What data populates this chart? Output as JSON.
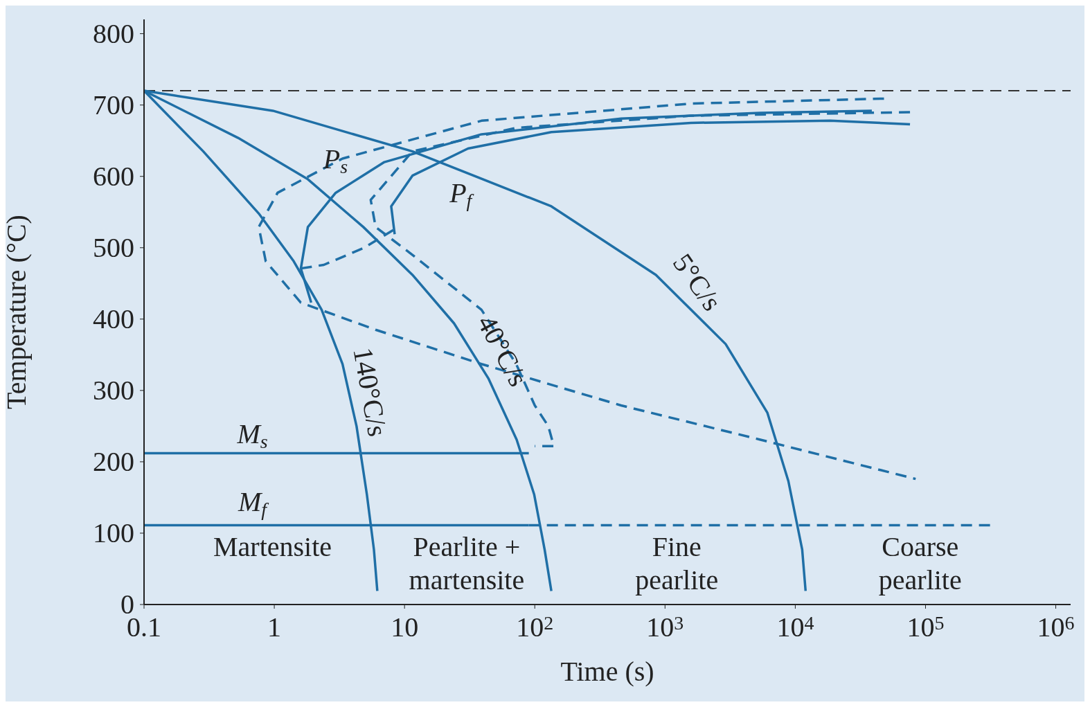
{
  "chart_data": {
    "type": "line",
    "xlabel": "Time (s)",
    "ylabel": "Temperature (°C)",
    "log": "x",
    "xlim": [
      0.1,
      1300000
    ],
    "xticks": [
      0.1,
      1,
      10,
      {
        "value": 100,
        "label": "10$^{2}$"
      },
      {
        "value": 1000,
        "label": "10$^{3}$"
      },
      {
        "value": 10000,
        "label": "10$^{4}$"
      },
      {
        "value": 100000,
        "label": "10$^{5}$"
      },
      {
        "value": 1000000,
        "label": "10$^{6}$"
      }
    ],
    "ylim": [
      0,
      820
    ],
    "yticks": [
      0,
      100,
      200,
      300,
      400,
      500,
      600,
      700,
      800
    ],
    "series": [
      {
        "color": "#1f6fa6",
        "line_style": "solid",
        "x": [
          0.1,
          0.285,
          0.76,
          1.41,
          2.31,
          3.34,
          4.28,
          5.14,
          5.82,
          6.18
        ],
        "values": [
          720,
          635,
          548,
          481,
          413,
          337,
          250,
          154,
          77,
          19
        ]
      },
      {
        "color": "#1f6fa6",
        "line_style": "solid",
        "x": [
          0.1,
          0.527,
          1.81,
          4.83,
          11.5,
          24,
          44,
          72.6,
          99,
          119,
          134
        ],
        "values": [
          720,
          654,
          596,
          529,
          462,
          394,
          317,
          231,
          154,
          77,
          19
        ]
      },
      {
        "color": "#1f6fa6",
        "line_style": "solid",
        "x": [
          0.1,
          0.975,
          11.5,
          134,
          851,
          2920,
          6100,
          8850,
          11300,
          12000
        ],
        "values": [
          720,
          692,
          635,
          558,
          462,
          365,
          269,
          173,
          77,
          19
        ]
      },
      {
        "color": "#1f6fa6",
        "line_style": "solid",
        "x": [
          1.92,
          1.6,
          1.81,
          2.96,
          7.0,
          39,
          460,
          5400,
          38700
        ],
        "values": [
          423,
          471,
          529,
          577,
          620,
          659,
          681,
          689,
          692
        ]
      },
      {
        "color": "#1f6fa6",
        "line_style": "solid",
        "x": [
          8.4,
          7.9,
          11.5,
          30.7,
          134,
          1580,
          18500,
          76000
        ],
        "values": [
          519,
          558,
          601,
          639,
          662,
          675,
          678,
          673
        ]
      },
      {
        "color": "#1f6fa6",
        "line_style": "dashed",
        "x": [
          48000,
          1580,
          39,
          3.34,
          1.06,
          0.76,
          0.86,
          1.6,
          6.0,
          39,
          460,
          5400,
          84000
        ],
        "values": [
          709,
          702,
          678,
          625,
          577,
          529,
          481,
          423,
          385,
          337,
          279,
          231,
          176
        ]
      },
      {
        "color": "#1f6fa6",
        "line_style": "dashed",
        "x": [
          76000,
          1580,
          72,
          11.5,
          5.5,
          6.0,
          11.5,
          39,
          72,
          100,
          127,
          140,
          100
        ],
        "values": [
          690,
          685,
          668,
          635,
          567,
          529,
          490,
          413,
          337,
          279,
          250,
          222,
          222
        ]
      },
      {
        "color": "#1f6fa6",
        "line_style": "dashed",
        "x": [
          1.6,
          2.4,
          4.9,
          8.4
        ],
        "values": [
          471,
          476,
          500,
          526
        ]
      },
      {
        "color": "#1f6fa6",
        "line_style": "solid",
        "x": [
          0.1,
          90
        ],
        "values": [
          212,
          212
        ]
      },
      {
        "color": "#1f6fa6",
        "line_style": "solid",
        "x": [
          0.1,
          90
        ],
        "values": [
          111,
          111
        ]
      },
      {
        "color": "#1f6fa6",
        "line_style": "dashed",
        "x": [
          90,
          320000
        ],
        "values": [
          111,
          111
        ]
      }
    ],
    "ref_lines": [
      {
        "axis": "y",
        "value": 720,
        "color": "#333333",
        "line_style": "dashed"
      }
    ],
    "annotations": [
      "P$_{s}$",
      "P$_{f}$",
      "M$_{s}$",
      "M$_{f}$",
      "140°C/s",
      "40°C/s",
      "5°C/s",
      "Martensite",
      "Pearlite + martensite",
      "Fine pearlite",
      "Coarse pearlite"
    ]
  }
}
